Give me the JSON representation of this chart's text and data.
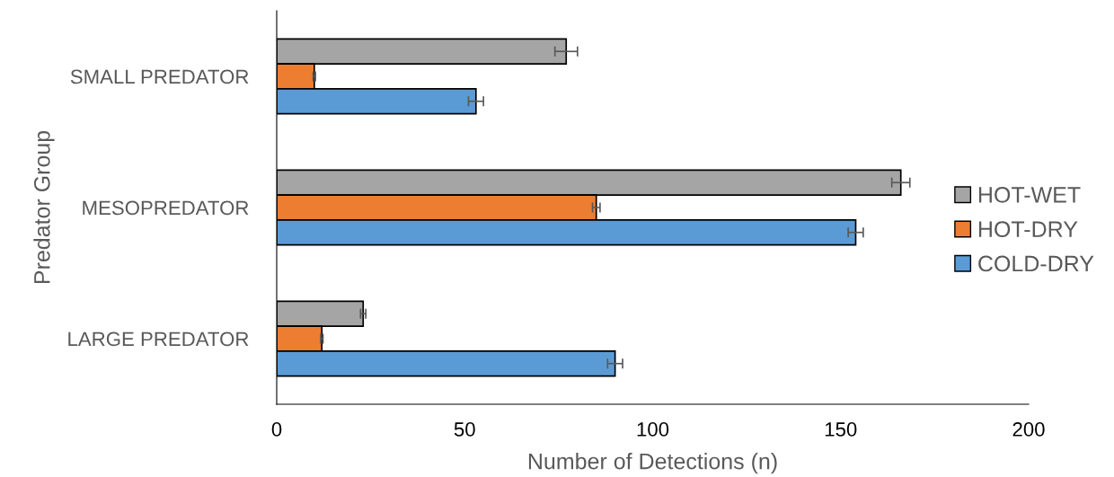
{
  "chart_data": {
    "type": "bar",
    "orientation": "horizontal",
    "categories": [
      "SMALL PREDATOR",
      "MESOPREDATOR",
      "LARGE PREDATOR"
    ],
    "series": [
      {
        "name": "HOT-WET",
        "color": "#a5a5a5",
        "values": [
          77,
          166,
          23
        ],
        "errors": [
          3,
          2.4,
          0.7
        ]
      },
      {
        "name": "HOT-DRY",
        "color": "#ed7d31",
        "values": [
          10,
          85,
          12
        ],
        "errors": [
          0.3,
          1,
          0.3
        ]
      },
      {
        "name": "COLD-DRY",
        "color": "#5b9bd5",
        "values": [
          53,
          154,
          90
        ],
        "errors": [
          2,
          2,
          2
        ]
      }
    ],
    "xlabel": "Number of Detections (n)",
    "ylabel": "Predator Group",
    "xlim": [
      0,
      200
    ],
    "xticks": [
      0,
      50,
      100,
      150,
      200
    ],
    "grid": false,
    "legend": "right"
  }
}
